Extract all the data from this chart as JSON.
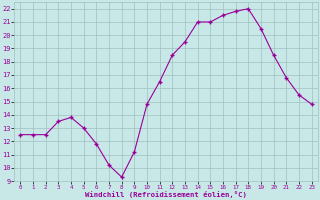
{
  "x": [
    0,
    1,
    2,
    3,
    4,
    5,
    6,
    7,
    8,
    9,
    10,
    11,
    12,
    13,
    14,
    15,
    16,
    17,
    18,
    19,
    20,
    21,
    22,
    23
  ],
  "y": [
    12.5,
    12.5,
    12.5,
    13.5,
    13.8,
    13.0,
    11.8,
    10.2,
    9.3,
    11.2,
    14.8,
    16.5,
    18.5,
    19.5,
    21.0,
    21.0,
    21.5,
    21.8,
    22.0,
    20.5,
    18.5,
    16.8,
    15.5,
    14.8
  ],
  "line_color": "#990099",
  "marker": "+",
  "bg_color": "#c8e8e8",
  "grid_color": "#a0c0c0",
  "xlabel": "Windchill (Refroidissement éolien,°C)",
  "ylim": [
    9,
    22.5
  ],
  "yticks": [
    9,
    10,
    11,
    12,
    13,
    14,
    15,
    16,
    17,
    18,
    19,
    20,
    21,
    22
  ],
  "xlim": [
    -0.5,
    23.5
  ],
  "xticks": [
    0,
    1,
    2,
    3,
    4,
    5,
    6,
    7,
    8,
    9,
    10,
    11,
    12,
    13,
    14,
    15,
    16,
    17,
    18,
    19,
    20,
    21,
    22,
    23
  ]
}
